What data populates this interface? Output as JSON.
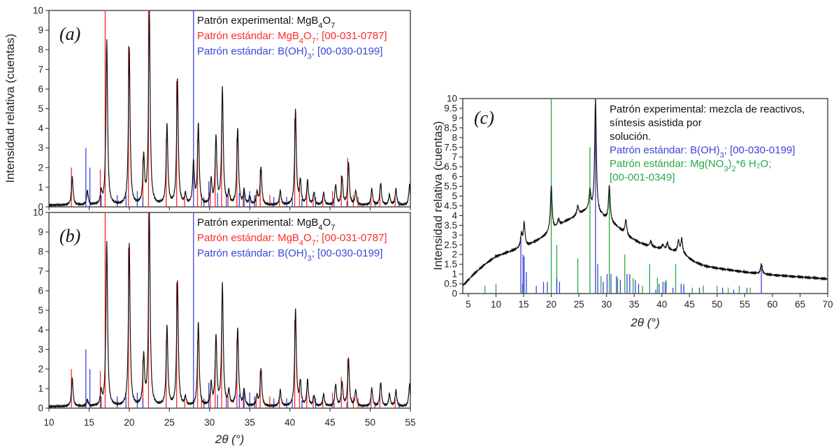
{
  "colors": {
    "experimental": "#111111",
    "mgb4o7": "#ff2a2a",
    "boh3": "#3a46d8",
    "mgno3": "#27a845"
  },
  "chart_data": [
    {
      "panel": "(a)",
      "type": "line",
      "xlim": [
        10,
        55
      ],
      "ylim": [
        0,
        10
      ],
      "x_ticks": [
        10,
        15,
        20,
        25,
        30,
        35,
        40,
        45,
        50,
        55
      ],
      "y_ticks": [
        0,
        1,
        2,
        3,
        4,
        5,
        6,
        7,
        8,
        9,
        10
      ],
      "ylabel": "Intensidad relativa (cuentas)",
      "legend": [
        {
          "series": "experimental",
          "text": "Patrón experimental: MgB",
          "sub": "4",
          "text2": "O",
          "sub2": "7",
          "tail": ""
        },
        {
          "series": "mgb4o7",
          "text": "Patrón estándar: MgB",
          "sub": "4",
          "text2": "O",
          "sub2": "7",
          "tail": "; [00-031-0787]"
        },
        {
          "series": "boh3",
          "text": "Patrón estándar: B(OH)",
          "sub": "3",
          "text2": "",
          "sub2": "",
          "tail": "; [00-030-0199]"
        }
      ],
      "experimental_peaks": [
        [
          12.9,
          1.5
        ],
        [
          14.8,
          0.8
        ],
        [
          16.5,
          0.7
        ],
        [
          17.2,
          8.5
        ],
        [
          20.0,
          8.1
        ],
        [
          21.8,
          2.5
        ],
        [
          22.5,
          10.0
        ],
        [
          24.7,
          4.2
        ],
        [
          26.0,
          6.5
        ],
        [
          27.0,
          0.6
        ],
        [
          28.0,
          2.2
        ],
        [
          28.6,
          4.2
        ],
        [
          30.2,
          1.3
        ],
        [
          30.8,
          3.5
        ],
        [
          31.6,
          6.0
        ],
        [
          32.4,
          0.7
        ],
        [
          33.5,
          4.0
        ],
        [
          34.3,
          0.8
        ],
        [
          35.0,
          0.5
        ],
        [
          35.9,
          0.7
        ],
        [
          36.4,
          2.0
        ],
        [
          38.8,
          0.8
        ],
        [
          40.7,
          4.9
        ],
        [
          41.3,
          1.3
        ],
        [
          42.2,
          1.3
        ],
        [
          43.0,
          0.7
        ],
        [
          44.2,
          0.7
        ],
        [
          45.7,
          1.1
        ],
        [
          46.5,
          1.5
        ],
        [
          47.3,
          2.2
        ],
        [
          48.2,
          0.8
        ],
        [
          50.2,
          0.9
        ],
        [
          51.3,
          1.2
        ],
        [
          52.4,
          0.6
        ],
        [
          53.2,
          0.9
        ],
        [
          54.9,
          1.1
        ]
      ],
      "mgb4o7_sticks": [
        [
          12.8,
          2.0
        ],
        [
          16.4,
          1.9
        ],
        [
          17.0,
          10.0
        ],
        [
          19.9,
          8.2
        ],
        [
          21.7,
          2.5
        ],
        [
          22.4,
          10.0
        ],
        [
          24.6,
          3.5
        ],
        [
          25.9,
          6.4
        ],
        [
          26.9,
          0.6
        ],
        [
          28.5,
          3.5
        ],
        [
          29.0,
          0.5
        ],
        [
          30.1,
          1.0
        ],
        [
          30.7,
          2.5
        ],
        [
          31.5,
          4.2
        ],
        [
          32.3,
          0.6
        ],
        [
          33.4,
          3.5
        ],
        [
          34.2,
          0.6
        ],
        [
          35.8,
          0.6
        ],
        [
          36.3,
          1.9
        ],
        [
          37.5,
          0.6
        ],
        [
          38.7,
          0.6
        ],
        [
          40.6,
          4.5
        ],
        [
          41.2,
          1.0
        ],
        [
          42.1,
          1.0
        ],
        [
          42.9,
          0.6
        ],
        [
          44.1,
          0.6
        ],
        [
          45.3,
          0.8
        ],
        [
          46.4,
          1.6
        ],
        [
          47.2,
          2.5
        ],
        [
          47.9,
          0.6
        ],
        [
          48.5,
          0.5
        ],
        [
          50.1,
          0.6
        ],
        [
          51.2,
          0.8
        ],
        [
          53.1,
          0.5
        ]
      ],
      "boh3_sticks": [
        [
          14.6,
          3.0
        ],
        [
          15.1,
          2.0
        ],
        [
          16.5,
          0.6
        ],
        [
          18.5,
          0.6
        ],
        [
          19.6,
          0.6
        ],
        [
          21.0,
          0.8
        ],
        [
          21.7,
          0.5
        ],
        [
          28.0,
          10.0
        ],
        [
          29.3,
          0.5
        ],
        [
          29.9,
          1.3
        ],
        [
          31.0,
          0.7
        ],
        [
          32.1,
          0.6
        ],
        [
          33.7,
          0.7
        ],
        [
          34.3,
          1.0
        ],
        [
          35.0,
          0.8
        ],
        [
          35.6,
          0.6
        ],
        [
          38.0,
          0.5
        ],
        [
          39.6,
          0.5
        ],
        [
          40.3,
          0.4
        ],
        [
          41.5,
          0.4
        ],
        [
          43.2,
          0.5
        ],
        [
          45.5,
          0.3
        ],
        [
          47.1,
          0.3
        ],
        [
          50.6,
          0.3
        ],
        [
          53.6,
          0.3
        ]
      ]
    },
    {
      "panel": "(b)",
      "type": "line",
      "xlim": [
        10,
        55
      ],
      "ylim": [
        0,
        10
      ],
      "x_ticks": [
        10,
        15,
        20,
        25,
        30,
        35,
        40,
        45,
        50,
        55
      ],
      "y_ticks": [
        0,
        1,
        2,
        3,
        4,
        5,
        6,
        7,
        8,
        9,
        10
      ],
      "xlabel": "2θ (°)",
      "legend": [
        {
          "series": "experimental",
          "text": "Patrón experimental: MgB",
          "sub": "4",
          "text2": "O",
          "sub2": "7",
          "tail": ""
        },
        {
          "series": "mgb4o7",
          "text": "Patrón estándar: MgB",
          "sub": "4",
          "text2": "O",
          "sub2": "7",
          "tail": "; [00-031-0787]"
        },
        {
          "series": "boh3",
          "text": "Patrón estándar: B(OH)",
          "sub": "3",
          "text2": "",
          "sub2": "",
          "tail": "; [00-030-0199]"
        }
      ],
      "experimental_peaks": [
        [
          12.9,
          1.5
        ],
        [
          14.8,
          0.4
        ],
        [
          16.5,
          0.8
        ],
        [
          17.2,
          8.5
        ],
        [
          20.0,
          8.4
        ],
        [
          21.8,
          2.6
        ],
        [
          22.5,
          10.0
        ],
        [
          24.7,
          4.2
        ],
        [
          26.0,
          6.5
        ],
        [
          27.0,
          0.5
        ],
        [
          28.6,
          4.4
        ],
        [
          30.2,
          1.2
        ],
        [
          30.8,
          3.6
        ],
        [
          31.6,
          6.3
        ],
        [
          32.4,
          0.8
        ],
        [
          33.5,
          4.1
        ],
        [
          34.3,
          0.9
        ],
        [
          35.9,
          0.6
        ],
        [
          36.4,
          2.0
        ],
        [
          38.8,
          0.9
        ],
        [
          40.7,
          5.0
        ],
        [
          41.3,
          1.3
        ],
        [
          42.2,
          1.4
        ],
        [
          43.0,
          0.6
        ],
        [
          44.2,
          0.7
        ],
        [
          45.7,
          1.2
        ],
        [
          46.5,
          1.3
        ],
        [
          47.3,
          2.5
        ],
        [
          48.2,
          0.9
        ],
        [
          50.2,
          1.0
        ],
        [
          51.3,
          1.3
        ],
        [
          52.4,
          0.7
        ],
        [
          53.2,
          0.9
        ],
        [
          54.9,
          1.2
        ]
      ],
      "mgb4o7_sticks": [
        [
          12.8,
          2.0
        ],
        [
          16.4,
          1.9
        ],
        [
          17.0,
          10.0
        ],
        [
          19.9,
          8.2
        ],
        [
          21.7,
          2.5
        ],
        [
          22.4,
          10.0
        ],
        [
          24.6,
          3.5
        ],
        [
          25.9,
          6.4
        ],
        [
          26.9,
          0.6
        ],
        [
          28.5,
          3.5
        ],
        [
          29.0,
          0.5
        ],
        [
          30.1,
          1.0
        ],
        [
          30.7,
          2.5
        ],
        [
          31.5,
          4.2
        ],
        [
          32.3,
          0.6
        ],
        [
          33.4,
          3.5
        ],
        [
          34.2,
          0.6
        ],
        [
          35.8,
          0.6
        ],
        [
          36.3,
          1.9
        ],
        [
          37.5,
          0.6
        ],
        [
          38.7,
          0.6
        ],
        [
          40.6,
          4.5
        ],
        [
          41.2,
          1.0
        ],
        [
          42.1,
          1.0
        ],
        [
          42.9,
          0.6
        ],
        [
          44.1,
          0.6
        ],
        [
          45.3,
          0.8
        ],
        [
          46.4,
          1.6
        ],
        [
          47.2,
          2.5
        ],
        [
          47.9,
          0.6
        ],
        [
          48.5,
          0.5
        ],
        [
          50.1,
          0.6
        ],
        [
          51.2,
          0.8
        ],
        [
          53.1,
          0.5
        ]
      ],
      "boh3_sticks": [
        [
          14.6,
          3.0
        ],
        [
          15.1,
          2.0
        ],
        [
          16.5,
          0.6
        ],
        [
          18.5,
          0.6
        ],
        [
          19.6,
          0.6
        ],
        [
          21.0,
          0.8
        ],
        [
          21.7,
          0.5
        ],
        [
          28.0,
          10.0
        ],
        [
          29.3,
          0.5
        ],
        [
          29.9,
          1.3
        ],
        [
          31.0,
          0.7
        ],
        [
          32.1,
          0.6
        ],
        [
          33.7,
          0.7
        ],
        [
          34.3,
          1.0
        ],
        [
          35.0,
          0.8
        ],
        [
          35.6,
          0.6
        ],
        [
          38.0,
          0.5
        ],
        [
          39.6,
          0.5
        ],
        [
          40.3,
          0.4
        ],
        [
          41.5,
          0.4
        ],
        [
          43.2,
          0.5
        ],
        [
          45.5,
          0.3
        ],
        [
          47.1,
          0.3
        ],
        [
          50.6,
          0.3
        ],
        [
          53.6,
          0.3
        ]
      ]
    },
    {
      "panel": "(c)",
      "type": "line",
      "xlim": [
        4,
        70
      ],
      "ylim": [
        0,
        10
      ],
      "x_ticks": [
        5,
        10,
        15,
        20,
        25,
        30,
        35,
        40,
        45,
        50,
        55,
        60,
        65,
        70
      ],
      "y_ticks": [
        0,
        0.5,
        1,
        1.5,
        2,
        2.5,
        3,
        3.5,
        4,
        4.5,
        5,
        5.5,
        6,
        6.5,
        7,
        7.5,
        8,
        8.5,
        9,
        9.5,
        10
      ],
      "xlabel": "2θ (°)",
      "ylabel": "Intensidad relativa (cuentas)",
      "legend": [
        {
          "series": "experimental",
          "text": "Patrón experimental: mezcla de reactivos,"
        },
        {
          "series": "experimental",
          "text": "síntesis asistida por"
        },
        {
          "series": "experimental",
          "text": "solución."
        },
        {
          "series": "boh3",
          "text": "Patrón estándar: B(OH)",
          "sub": "3",
          "tail": "; [00-030-0199]"
        },
        {
          "series": "mgno3",
          "text": "Patrón estándar: Mg(NO",
          "sub": "3",
          "tail": ")",
          "sub2": "2",
          "tail2": "*6 H₂O;"
        },
        {
          "series": "mgno3",
          "text": "[00-001-0349]"
        }
      ],
      "baseline": [
        [
          4,
          0.4
        ],
        [
          6,
          1.0
        ],
        [
          8,
          1.5
        ],
        [
          10,
          1.9
        ],
        [
          12,
          2.1
        ],
        [
          14,
          2.3
        ],
        [
          16,
          2.5
        ],
        [
          18,
          2.8
        ],
        [
          20,
          3.2
        ],
        [
          22,
          3.6
        ],
        [
          24,
          3.9
        ],
        [
          26,
          4.2
        ],
        [
          27,
          4.3
        ],
        [
          28,
          4.1
        ],
        [
          30,
          3.8
        ],
        [
          32,
          3.4
        ],
        [
          34,
          2.9
        ],
        [
          36,
          2.6
        ],
        [
          38,
          2.4
        ],
        [
          40,
          2.3
        ],
        [
          42,
          2.2
        ],
        [
          44,
          2.0
        ],
        [
          46,
          1.6
        ],
        [
          48,
          1.4
        ],
        [
          50,
          1.3
        ],
        [
          55,
          1.1
        ],
        [
          60,
          0.95
        ],
        [
          65,
          0.85
        ],
        [
          70,
          0.75
        ]
      ],
      "experimental_peaks": [
        [
          12.0,
          2.0
        ],
        [
          14.6,
          3.0
        ],
        [
          15.1,
          3.6
        ],
        [
          20.0,
          5.5
        ],
        [
          21.3,
          3.8
        ],
        [
          24.8,
          4.5
        ],
        [
          27.0,
          5.2
        ],
        [
          28.0,
          9.9
        ],
        [
          29.2,
          4.0
        ],
        [
          30.5,
          5.5
        ],
        [
          31.3,
          3.3
        ],
        [
          32.5,
          3.2
        ],
        [
          33.5,
          3.8
        ],
        [
          38.0,
          2.7
        ],
        [
          40.2,
          2.5
        ],
        [
          41.0,
          2.6
        ],
        [
          43.0,
          2.7
        ],
        [
          43.6,
          2.8
        ],
        [
          58.0,
          1.5
        ]
      ],
      "boh3_sticks": [
        [
          14.5,
          2.9
        ],
        [
          14.9,
          2.0
        ],
        [
          15.1,
          1.9
        ],
        [
          15.5,
          1.1
        ],
        [
          17.3,
          0.4
        ],
        [
          18.6,
          0.6
        ],
        [
          19.3,
          0.6
        ],
        [
          21.0,
          0.8
        ],
        [
          21.5,
          0.6
        ],
        [
          28.0,
          10.0
        ],
        [
          28.4,
          1.5
        ],
        [
          29.4,
          0.6
        ],
        [
          30.1,
          1.0
        ],
        [
          30.8,
          1.0
        ],
        [
          31.8,
          0.9
        ],
        [
          32.5,
          0.7
        ],
        [
          33.7,
          1.0
        ],
        [
          34.2,
          1.0
        ],
        [
          35.2,
          0.7
        ],
        [
          35.8,
          0.5
        ],
        [
          38.9,
          0.2
        ],
        [
          39.5,
          0.5
        ],
        [
          40.2,
          0.6
        ],
        [
          40.6,
          0.6
        ],
        [
          42.0,
          0.3
        ],
        [
          43.5,
          0.5
        ],
        [
          44.0,
          0.4
        ],
        [
          46.8,
          0.3
        ],
        [
          51.0,
          0.3
        ],
        [
          53.0,
          0.2
        ],
        [
          55.4,
          0.3
        ],
        [
          58.0,
          1.5
        ]
      ],
      "mgno3_sticks": [
        [
          8.0,
          0.4
        ],
        [
          10.0,
          0.5
        ],
        [
          14.8,
          0.5
        ],
        [
          20.0,
          10.0
        ],
        [
          21.0,
          2.5
        ],
        [
          24.8,
          1.8
        ],
        [
          27.0,
          7.5
        ],
        [
          29.0,
          0.9
        ],
        [
          30.5,
          5.5
        ],
        [
          32.0,
          0.8
        ],
        [
          33.3,
          2.0
        ],
        [
          34.8,
          0.8
        ],
        [
          36.5,
          0.4
        ],
        [
          37.8,
          1.5
        ],
        [
          39.2,
          0.8
        ],
        [
          40.8,
          0.7
        ],
        [
          42.5,
          1.5
        ],
        [
          44.0,
          0.5
        ],
        [
          45.5,
          0.3
        ],
        [
          47.5,
          0.4
        ],
        [
          50.0,
          0.4
        ],
        [
          52.0,
          0.3
        ],
        [
          54.0,
          0.4
        ],
        [
          56.0,
          0.3
        ]
      ]
    }
  ]
}
